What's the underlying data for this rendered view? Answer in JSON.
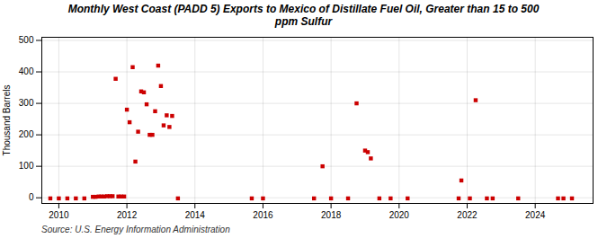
{
  "chart_data": {
    "type": "scatter",
    "title": "Monthly West Coast (PADD 5) Exports to Mexico of Distillate Fuel Oil, Greater than 15 to 500\nppm Sulfur",
    "ylabel": "Thousand Barrels",
    "source": "Source: U.S. Energy Information Administration",
    "color": "#cc0000",
    "marker": "square",
    "grid": true,
    "xlim": [
      2009.5,
      2025.7
    ],
    "ylim": [
      -18,
      510
    ],
    "xticks": [
      2010,
      2012,
      2014,
      2016,
      2018,
      2020,
      2022,
      2024
    ],
    "yticks": [
      0,
      100,
      200,
      300,
      400,
      500
    ],
    "x": [
      2009.75,
      2010.0,
      2010.25,
      2010.5,
      2010.75,
      2011.0,
      2011.08,
      2011.17,
      2011.25,
      2011.33,
      2011.42,
      2011.5,
      2011.58,
      2011.67,
      2011.75,
      2011.83,
      2011.92,
      2012.0,
      2012.08,
      2012.17,
      2012.25,
      2012.33,
      2012.42,
      2012.5,
      2012.58,
      2012.67,
      2012.75,
      2012.83,
      2012.92,
      2013.0,
      2013.08,
      2013.17,
      2013.25,
      2013.33,
      2013.5,
      2015.67,
      2016.0,
      2017.5,
      2017.75,
      2018.0,
      2018.5,
      2018.75,
      2019.0,
      2019.08,
      2019.17,
      2019.42,
      2019.75,
      2020.25,
      2021.75,
      2021.83,
      2022.08,
      2022.25,
      2022.58,
      2022.75,
      2023.5,
      2024.67,
      2024.83,
      2025.08
    ],
    "values": [
      -2,
      -2,
      -2,
      -2,
      -2,
      3,
      3,
      4,
      4,
      4,
      5,
      5,
      5,
      378,
      4,
      4,
      4,
      280,
      240,
      415,
      115,
      210,
      338,
      335,
      297,
      200,
      200,
      275,
      420,
      355,
      230,
      262,
      225,
      260,
      -2,
      -2,
      -2,
      -2,
      100,
      -2,
      -2,
      300,
      150,
      145,
      125,
      -2,
      -2,
      -2,
      -2,
      55,
      -2,
      310,
      -2,
      -2,
      -2,
      -2,
      -2,
      -2
    ]
  }
}
